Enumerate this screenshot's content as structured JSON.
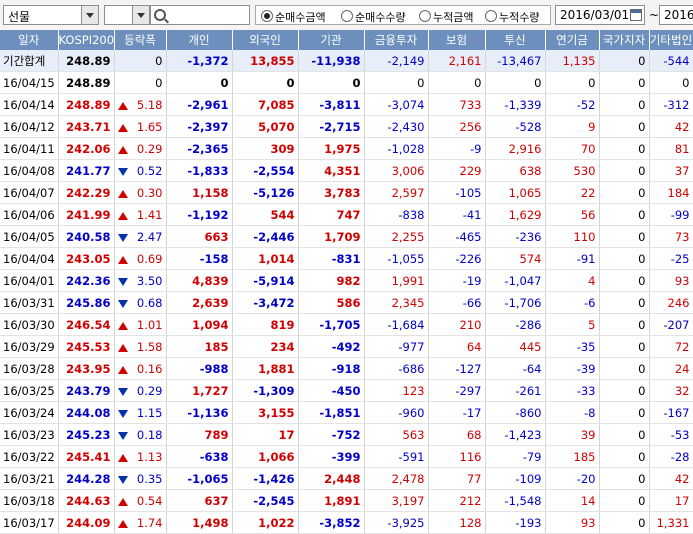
{
  "toolbar": {
    "market_select": "선물",
    "radio_options": [
      {
        "label": "순매수금액",
        "selected": true
      },
      {
        "label": "순매수수량",
        "selected": false
      },
      {
        "label": "누적금액",
        "selected": false
      },
      {
        "label": "누적수량",
        "selected": false
      }
    ],
    "date_from": "2016/03/01",
    "date_sep": "~",
    "date_to": "2016/"
  },
  "colors": {
    "header_bg": "#6c8fbd",
    "positive": "#d00000",
    "negative": "#0000c8"
  },
  "columns": [
    "일자",
    "KOSPI200",
    "등락폭",
    "개인",
    "외국인",
    "기관",
    "금융투자",
    "보험",
    "투신",
    "연기금",
    "국가지자",
    "기타법인"
  ],
  "total_row": {
    "date": "기간합계",
    "kospi": "248.89",
    "dir": "",
    "chg": "0",
    "vals": [
      "-1,372",
      "13,855",
      "-11,938",
      "-2,149",
      "2,161",
      "-13,467",
      "1,135",
      "0",
      "-544"
    ]
  },
  "rows": [
    {
      "date": "16/04/15",
      "kospi": "248.89",
      "dir": "",
      "chg": "0",
      "vals": [
        "0",
        "0",
        "0",
        "0",
        "0",
        "0",
        "0",
        "0",
        "0"
      ]
    },
    {
      "date": "16/04/14",
      "kospi": "248.89",
      "dir": "up",
      "chg": "5.18",
      "vals": [
        "-2,961",
        "7,085",
        "-3,811",
        "-3,074",
        "733",
        "-1,339",
        "-52",
        "0",
        "-312"
      ]
    },
    {
      "date": "16/04/12",
      "kospi": "243.71",
      "dir": "up",
      "chg": "1.65",
      "vals": [
        "-2,397",
        "5,070",
        "-2,715",
        "-2,430",
        "256",
        "-528",
        "9",
        "0",
        "42"
      ]
    },
    {
      "date": "16/04/11",
      "kospi": "242.06",
      "dir": "up",
      "chg": "0.29",
      "vals": [
        "-2,365",
        "309",
        "1,975",
        "-1,028",
        "-9",
        "2,916",
        "70",
        "0",
        "81"
      ]
    },
    {
      "date": "16/04/08",
      "kospi": "241.77",
      "dir": "down",
      "chg": "0.52",
      "vals": [
        "-1,833",
        "-2,554",
        "4,351",
        "3,006",
        "229",
        "638",
        "530",
        "0",
        "37"
      ]
    },
    {
      "date": "16/04/07",
      "kospi": "242.29",
      "dir": "up",
      "chg": "0.30",
      "vals": [
        "1,158",
        "-5,126",
        "3,783",
        "2,597",
        "-105",
        "1,065",
        "22",
        "0",
        "184"
      ]
    },
    {
      "date": "16/04/06",
      "kospi": "241.99",
      "dir": "up",
      "chg": "1.41",
      "vals": [
        "-1,192",
        "544",
        "747",
        "-838",
        "-41",
        "1,629",
        "56",
        "0",
        "-99"
      ]
    },
    {
      "date": "16/04/05",
      "kospi": "240.58",
      "dir": "down",
      "chg": "2.47",
      "vals": [
        "663",
        "-2,446",
        "1,709",
        "2,255",
        "-465",
        "-236",
        "110",
        "0",
        "73"
      ]
    },
    {
      "date": "16/04/04",
      "kospi": "243.05",
      "dir": "up",
      "chg": "0.69",
      "vals": [
        "-158",
        "1,014",
        "-831",
        "-1,055",
        "-226",
        "574",
        "-91",
        "0",
        "-25"
      ]
    },
    {
      "date": "16/04/01",
      "kospi": "242.36",
      "dir": "down",
      "chg": "3.50",
      "vals": [
        "4,839",
        "-5,914",
        "982",
        "1,991",
        "-19",
        "-1,047",
        "4",
        "0",
        "93"
      ]
    },
    {
      "date": "16/03/31",
      "kospi": "245.86",
      "dir": "down",
      "chg": "0.68",
      "vals": [
        "2,639",
        "-3,472",
        "586",
        "2,345",
        "-66",
        "-1,706",
        "-6",
        "0",
        "246"
      ]
    },
    {
      "date": "16/03/30",
      "kospi": "246.54",
      "dir": "up",
      "chg": "1.01",
      "vals": [
        "1,094",
        "819",
        "-1,705",
        "-1,684",
        "210",
        "-286",
        "5",
        "0",
        "-207"
      ]
    },
    {
      "date": "16/03/29",
      "kospi": "245.53",
      "dir": "up",
      "chg": "1.58",
      "vals": [
        "185",
        "234",
        "-492",
        "-977",
        "64",
        "445",
        "-35",
        "0",
        "72"
      ]
    },
    {
      "date": "16/03/28",
      "kospi": "243.95",
      "dir": "up",
      "chg": "0.16",
      "vals": [
        "-988",
        "1,881",
        "-918",
        "-686",
        "-127",
        "-64",
        "-39",
        "0",
        "24"
      ]
    },
    {
      "date": "16/03/25",
      "kospi": "243.79",
      "dir": "down",
      "chg": "0.29",
      "vals": [
        "1,727",
        "-1,309",
        "-450",
        "123",
        "-297",
        "-261",
        "-33",
        "0",
        "32"
      ]
    },
    {
      "date": "16/03/24",
      "kospi": "244.08",
      "dir": "down",
      "chg": "1.15",
      "vals": [
        "-1,136",
        "3,155",
        "-1,851",
        "-960",
        "-17",
        "-860",
        "-8",
        "0",
        "-167"
      ]
    },
    {
      "date": "16/03/23",
      "kospi": "245.23",
      "dir": "down",
      "chg": "0.18",
      "vals": [
        "789",
        "17",
        "-752",
        "563",
        "68",
        "-1,423",
        "39",
        "0",
        "-53"
      ]
    },
    {
      "date": "16/03/22",
      "kospi": "245.41",
      "dir": "up",
      "chg": "1.13",
      "vals": [
        "-638",
        "1,066",
        "-399",
        "-591",
        "116",
        "-79",
        "185",
        "0",
        "-28"
      ]
    },
    {
      "date": "16/03/21",
      "kospi": "244.28",
      "dir": "down",
      "chg": "0.35",
      "vals": [
        "-1,065",
        "-1,426",
        "2,448",
        "2,478",
        "77",
        "-109",
        "-20",
        "0",
        "42"
      ]
    },
    {
      "date": "16/03/18",
      "kospi": "244.63",
      "dir": "up",
      "chg": "0.54",
      "vals": [
        "637",
        "-2,545",
        "1,891",
        "3,197",
        "212",
        "-1,548",
        "14",
        "0",
        "17"
      ]
    },
    {
      "date": "16/03/17",
      "kospi": "244.09",
      "dir": "up",
      "chg": "1.74",
      "vals": [
        "1,498",
        "1,022",
        "-3,852",
        "-3,925",
        "128",
        "-193",
        "93",
        "0",
        "1,331"
      ]
    }
  ]
}
